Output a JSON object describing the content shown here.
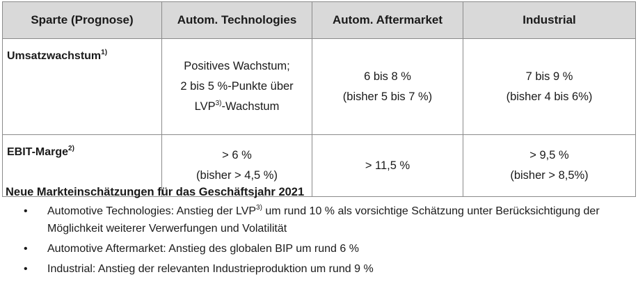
{
  "table": {
    "headers": [
      "Sparte (Prognose)",
      "Autom. Technologies",
      "Autom. Aftermarket",
      "Industrial"
    ],
    "rows": [
      {
        "label": "Umsatzwachstum",
        "label_sup": "1)",
        "cells": [
          {
            "lines": [
              "Positives Wachstum;",
              "2 bis 5 %-Punkte über",
              {
                "pre": "LVP",
                "sup": "3)",
                "post": "-Wachstum"
              }
            ]
          },
          {
            "lines": [
              "6 bis 8 %",
              "(bisher 5 bis 7 %)"
            ]
          },
          {
            "lines": [
              "7 bis 9 %",
              "(bisher 4 bis 6%)"
            ]
          }
        ]
      },
      {
        "label": "EBIT-Marge",
        "label_sup": "2)",
        "cells": [
          {
            "lines": [
              "> 6 %",
              "(bisher > 4,5 %)"
            ]
          },
          {
            "lines": [
              "> 11,5 %"
            ]
          },
          {
            "lines": [
              "> 9,5 %",
              "(bisher > 8,5%)"
            ]
          }
        ]
      }
    ]
  },
  "section": {
    "title": "Neue Markteinschätzungen für das Geschäftsjahr 2021",
    "bullet_symbol": "•",
    "items": [
      {
        "pre": "Automotive Technologies: Anstieg der LVP",
        "sup": "3)",
        "post": " um rund 10 % als vorsichtige Schätzung unter Berücksichtigung der Möglichkeit weiterer Verwerfungen und Volatilität"
      },
      {
        "pre": "Automotive Aftermarket: Anstieg des globalen BIP um rund 6 %",
        "sup": "",
        "post": ""
      },
      {
        "pre": "Industrial: Anstieg der relevanten Industrieproduktion um rund 9 %",
        "sup": "",
        "post": ""
      }
    ]
  }
}
